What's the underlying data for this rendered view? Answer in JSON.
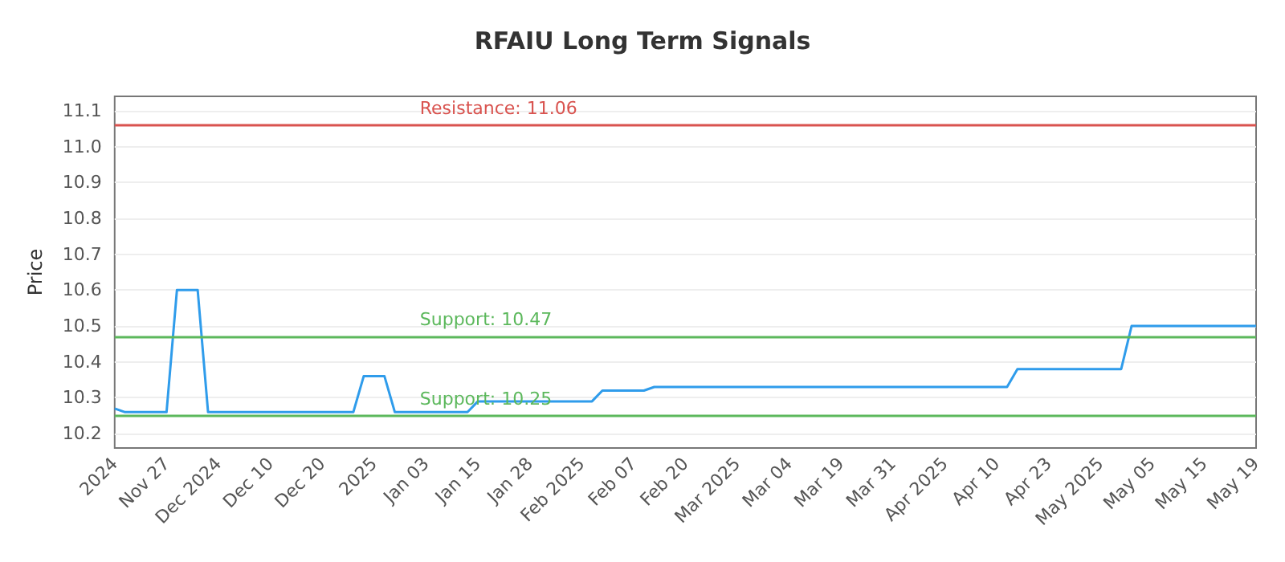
{
  "chart_data": {
    "type": "line",
    "title": "RFAIU Long Term Signals",
    "ylabel": "Price",
    "categories": [
      "2024",
      null,
      null,
      null,
      null,
      "Nov 27",
      null,
      null,
      null,
      null,
      "Dec 2024",
      null,
      null,
      null,
      null,
      "Dec 10",
      null,
      null,
      null,
      null,
      "Dec 20",
      null,
      null,
      null,
      null,
      "2025",
      null,
      null,
      null,
      null,
      "Jan 03",
      null,
      null,
      null,
      null,
      "Jan 15",
      null,
      null,
      null,
      null,
      "Jan 28",
      null,
      null,
      null,
      null,
      "Feb 2025",
      null,
      null,
      null,
      null,
      "Feb 07",
      null,
      null,
      null,
      null,
      "Feb 20",
      null,
      null,
      null,
      null,
      "Mar 2025",
      null,
      null,
      null,
      null,
      "Mar 04",
      null,
      null,
      null,
      null,
      "Mar 19",
      null,
      null,
      null,
      null,
      "Mar 31",
      null,
      null,
      null,
      null,
      "Apr 2025",
      null,
      null,
      null,
      null,
      "Apr 10",
      null,
      null,
      null,
      null,
      "Apr 23",
      null,
      null,
      null,
      null,
      "May 2025",
      null,
      null,
      null,
      null,
      "May 05",
      null,
      null,
      null,
      null,
      "May 15",
      null,
      null,
      null,
      null,
      "May 19"
    ],
    "series": [
      {
        "color": "#2f9ceb",
        "values": [
          10.27,
          10.26,
          10.26,
          10.26,
          10.26,
          10.26,
          10.6,
          10.6,
          10.6,
          10.26,
          10.26,
          10.26,
          10.26,
          10.26,
          10.26,
          10.26,
          10.26,
          10.26,
          10.26,
          10.26,
          10.26,
          10.26,
          10.26,
          10.26,
          10.36,
          10.36,
          10.36,
          10.26,
          10.26,
          10.26,
          10.26,
          10.26,
          10.26,
          10.26,
          10.26,
          10.29,
          10.29,
          10.29,
          10.29,
          10.29,
          10.29,
          10.29,
          10.29,
          10.29,
          10.29,
          10.29,
          10.29,
          10.32,
          10.32,
          10.32,
          10.32,
          10.32,
          10.33,
          10.33,
          10.33,
          10.33,
          10.33,
          10.33,
          10.33,
          10.33,
          10.33,
          10.33,
          10.33,
          10.33,
          10.33,
          10.33,
          10.33,
          10.33,
          10.33,
          10.33,
          10.33,
          10.33,
          10.33,
          10.33,
          10.33,
          10.33,
          10.33,
          10.33,
          10.33,
          10.33,
          10.33,
          10.33,
          10.33,
          10.33,
          10.33,
          10.33,
          10.33,
          10.38,
          10.38,
          10.38,
          10.38,
          10.38,
          10.38,
          10.38,
          10.38,
          10.38,
          10.38,
          10.38,
          10.5,
          10.5,
          10.5,
          10.5,
          10.5,
          10.5,
          10.5,
          10.5,
          10.5,
          10.5,
          10.5,
          10.5,
          10.5
        ]
      }
    ],
    "ylim": [
      10.16,
      11.14
    ],
    "yticks": [
      10.2,
      10.3,
      10.4,
      10.5,
      10.6,
      10.7,
      10.8,
      10.9,
      {
        "value": 11,
        "label": "11.0"
      },
      11.1
    ],
    "grid": "y",
    "marker": "none",
    "line_style": "solid",
    "ref_lines": [
      {
        "axis": "y",
        "value": 11.06,
        "label": "Resistance: 11.06",
        "color": "#d9534f"
      },
      {
        "axis": "y",
        "value": 10.47,
        "label": "Support: 10.47",
        "color": "#5cb85c"
      },
      {
        "axis": "y",
        "value": 10.25,
        "label": "Support: 10.25",
        "color": "#5cb85c"
      }
    ]
  }
}
